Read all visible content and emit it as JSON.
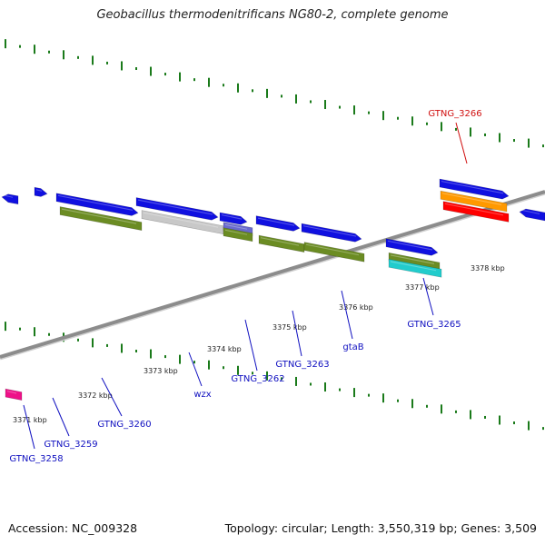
{
  "title": "Geobacillus thermodenitrificans NG80-2, complete genome",
  "footer": {
    "accession": "Accession: NC_009328",
    "summary": "Topology: circular; Length: 3,550,319 bp; Genes: 3,509"
  },
  "colors": {
    "backbone": "#8c8c8c",
    "tick": "#1a7a1a",
    "gene": "#1010e0",
    "gene_label": "#1010c0",
    "highlight_label": "#d01010",
    "cog_green": "#6b8c23",
    "cog_gray": "#c8c8c8",
    "cog_orange": "#ff9900",
    "cog_red": "#ff0000",
    "cog_pink": "#ee1188",
    "cog_cyan": "#22cccc",
    "cog_purple": "#6a6acd"
  },
  "scale_labels": [
    "3371 kbp",
    "3372 kbp",
    "3373 kbp",
    "3374 kbp",
    "3375 kbp",
    "3376 kbp",
    "3377 kbp",
    "3378 kbp"
  ],
  "gene_labels": [
    {
      "name": "GTNG_3258",
      "color": "gene_label"
    },
    {
      "name": "GTNG_3259",
      "color": "gene_label"
    },
    {
      "name": "GTNG_3260",
      "color": "gene_label"
    },
    {
      "name": "wzx",
      "color": "gene_label"
    },
    {
      "name": "GTNG_3262",
      "color": "gene_label"
    },
    {
      "name": "GTNG_3263",
      "color": "gene_label"
    },
    {
      "name": "gtaB",
      "color": "gene_label"
    },
    {
      "name": "GTNG_3265",
      "color": "gene_label"
    },
    {
      "name": "GTNG_3266",
      "color": "highlight_label"
    }
  ],
  "features": [
    {
      "name": "GTNG_3258",
      "strand": "reverse",
      "cog": "cog_pink"
    },
    {
      "name": "GTNG_3259",
      "strand": "reverse",
      "cog": null
    },
    {
      "name": "GTNG_3260",
      "strand": "reverse",
      "cog": "cog_green"
    },
    {
      "name": "wzx",
      "strand": "forward",
      "cog": "cog_gray"
    },
    {
      "name": "GTNG_3262",
      "strand": "forward",
      "cog": "cog_purple"
    },
    {
      "name": "GTNG_3263",
      "strand": "reverse",
      "cog": "cog_green"
    },
    {
      "name": "gtaB",
      "strand": "forward",
      "cog": "cog_green"
    },
    {
      "name": "GTNG_3265",
      "strand": "forward",
      "cog": "cog_cyan"
    },
    {
      "name": "GTNG_3266",
      "strand": "forward",
      "cog": "cog_red"
    }
  ]
}
